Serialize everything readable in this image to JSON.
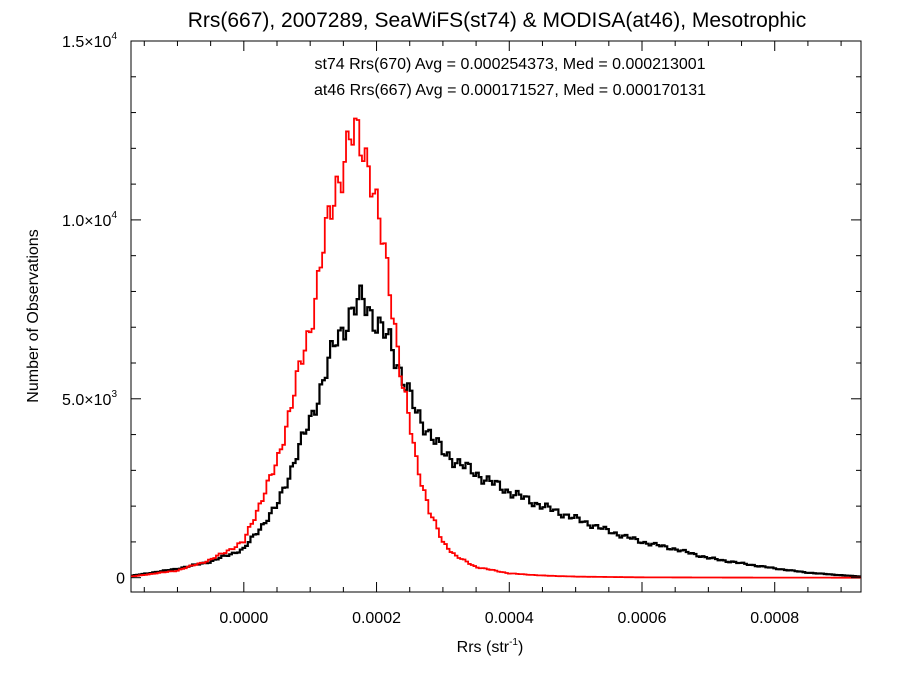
{
  "chart_data": {
    "type": "histogram",
    "title": "Rrs(667), 2007289, SeaWiFS(st74) & MODISA(at46), Mesotrophic",
    "xlabel_main": "Rrs (str",
    "xlabel_sup": "-1",
    "xlabel_close": ")",
    "ylabel": "Number of Observations",
    "xlim": [
      -0.00017,
      0.00093
    ],
    "ylim": [
      -400,
      15000
    ],
    "x_ticks": [
      {
        "value": 0.0,
        "label": "0.0000"
      },
      {
        "value": 0.0002,
        "label": "0.0002"
      },
      {
        "value": 0.0004,
        "label": "0.0004"
      },
      {
        "value": 0.0006,
        "label": "0.0006"
      },
      {
        "value": 0.0008,
        "label": "0.0008"
      }
    ],
    "y_ticks": [
      {
        "value": 0,
        "base": "0",
        "exp": ""
      },
      {
        "value": 5000,
        "base": "5.0×10",
        "exp": "3"
      },
      {
        "value": 10000,
        "base": "1.0×10",
        "exp": "4"
      },
      {
        "value": 15000,
        "base": "1.5×10",
        "exp": "4"
      }
    ],
    "grid": false,
    "annotations": [
      {
        "text": "st74 Rrs(670) Avg = 0.000254373, Med = 0.000213001",
        "color": "#000000"
      },
      {
        "text": "at46 Rrs(667) Avg = 0.000171527, Med = 0.000170131",
        "color": "#ff0000"
      }
    ],
    "series": [
      {
        "name": "st74",
        "color": "#000000",
        "x": [
          -0.00017,
          -0.0001,
          -5e-05,
          0.0,
          5e-05,
          0.0001,
          0.00012,
          0.00014,
          0.00016,
          0.00018,
          0.00019,
          0.0002,
          0.00022,
          0.00024,
          0.00026,
          0.0003,
          0.00035,
          0.0004,
          0.00045,
          0.0005,
          0.00055,
          0.0006,
          0.00065,
          0.0007,
          0.00075,
          0.0008,
          0.00085,
          0.0009,
          0.00093
        ],
        "y": [
          50,
          250,
          450,
          800,
          2000,
          4400,
          5500,
          6700,
          7300,
          7800,
          7500,
          7100,
          6600,
          5600,
          4600,
          3500,
          2900,
          2400,
          2000,
          1650,
          1300,
          1000,
          800,
          550,
          400,
          260,
          140,
          70,
          30
        ]
      },
      {
        "name": "at46",
        "color": "#ff0000",
        "x": [
          -0.00017,
          -0.0001,
          -5e-05,
          0.0,
          5e-05,
          0.0001,
          0.00012,
          0.00014,
          0.00016,
          0.00017,
          0.00018,
          0.00019,
          0.0002,
          0.00022,
          0.00024,
          0.00026,
          0.00028,
          0.0003,
          0.00032,
          0.00035,
          0.0004,
          0.00045,
          0.0005,
          0.0006,
          0.0007,
          0.0008,
          0.00093
        ],
        "y": [
          30,
          200,
          500,
          1000,
          3200,
          7000,
          9200,
          11000,
          12200,
          12300,
          12100,
          11500,
          10300,
          8200,
          5300,
          3300,
          1850,
          1000,
          600,
          300,
          120,
          60,
          30,
          10,
          5,
          2,
          0
        ]
      }
    ]
  }
}
